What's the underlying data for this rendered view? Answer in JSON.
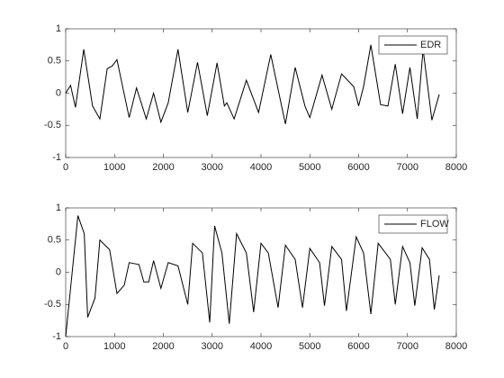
{
  "chart_data": [
    {
      "type": "line",
      "x": [
        0,
        100,
        200,
        370,
        550,
        700,
        850,
        950,
        1050,
        1300,
        1450,
        1650,
        1800,
        1950,
        2100,
        2300,
        2500,
        2700,
        2900,
        3100,
        3250,
        3300,
        3450,
        3700,
        3950,
        4200,
        4500,
        4700,
        4900,
        5000,
        5250,
        5450,
        5650,
        5900,
        6000,
        6100,
        6250,
        6450,
        6600,
        6750,
        6900,
        7050,
        7200,
        7320,
        7500,
        7650
      ],
      "series": [
        {
          "name": "EDR",
          "color": "#000000",
          "values": [
            0,
            0.12,
            -0.22,
            0.68,
            -0.2,
            -0.4,
            0.38,
            0.42,
            0.52,
            -0.38,
            0.08,
            -0.4,
            0,
            -0.45,
            -0.15,
            0.68,
            -0.3,
            0.48,
            -0.35,
            0.47,
            -0.2,
            -0.15,
            -0.4,
            0.2,
            -0.3,
            0.6,
            -0.48,
            0.4,
            -0.2,
            -0.38,
            0.28,
            -0.25,
            0.3,
            0.1,
            -0.2,
            0.1,
            0.75,
            -0.18,
            -0.2,
            0.45,
            -0.32,
            0.4,
            -0.4,
            0.68,
            -0.42,
            -0.02
          ]
        }
      ],
      "xlim": [
        0,
        8000
      ],
      "xticks": [
        0,
        1000,
        2000,
        3000,
        4000,
        5000,
        6000,
        7000,
        8000
      ],
      "ylim": [
        -1,
        1
      ],
      "yticks": [
        -1,
        -0.5,
        0,
        0.5,
        1
      ],
      "legend": "northeast"
    },
    {
      "type": "line",
      "x": [
        0,
        250,
        380,
        450,
        600,
        700,
        900,
        1050,
        1200,
        1300,
        1500,
        1600,
        1700,
        1800,
        1950,
        2100,
        2300,
        2500,
        2600,
        2800,
        2950,
        3050,
        3200,
        3350,
        3500,
        3700,
        3850,
        4000,
        4150,
        4350,
        4500,
        4700,
        4850,
        5000,
        5200,
        5300,
        5450,
        5650,
        5750,
        5950,
        6100,
        6250,
        6400,
        6650,
        6750,
        6900,
        7050,
        7150,
        7300,
        7450,
        7550,
        7650
      ],
      "series": [
        {
          "name": "FLOW",
          "color": "#000000",
          "values": [
            -1,
            0.88,
            0.6,
            -0.7,
            -0.4,
            0.5,
            0.35,
            -0.33,
            -0.2,
            0.15,
            0.12,
            -0.15,
            -0.15,
            0.18,
            -0.25,
            0.15,
            0.1,
            -0.5,
            0.45,
            0.3,
            -0.78,
            0.72,
            0.3,
            -0.8,
            0.6,
            0.3,
            -0.62,
            0.45,
            0.3,
            -0.55,
            0.42,
            0.2,
            -0.55,
            0.37,
            0.15,
            -0.52,
            0.4,
            0.2,
            -0.6,
            0.55,
            0.3,
            -0.65,
            0.45,
            0.2,
            -0.5,
            0.4,
            0.15,
            -0.52,
            0.38,
            0.2,
            -0.58,
            -0.05
          ]
        }
      ],
      "xlim": [
        0,
        8000
      ],
      "xticks": [
        0,
        1000,
        2000,
        3000,
        4000,
        5000,
        6000,
        7000,
        8000
      ],
      "ylim": [
        -1,
        1
      ],
      "yticks": [
        -1,
        -0.5,
        0,
        0.5,
        1
      ],
      "legend": "northeast"
    }
  ]
}
